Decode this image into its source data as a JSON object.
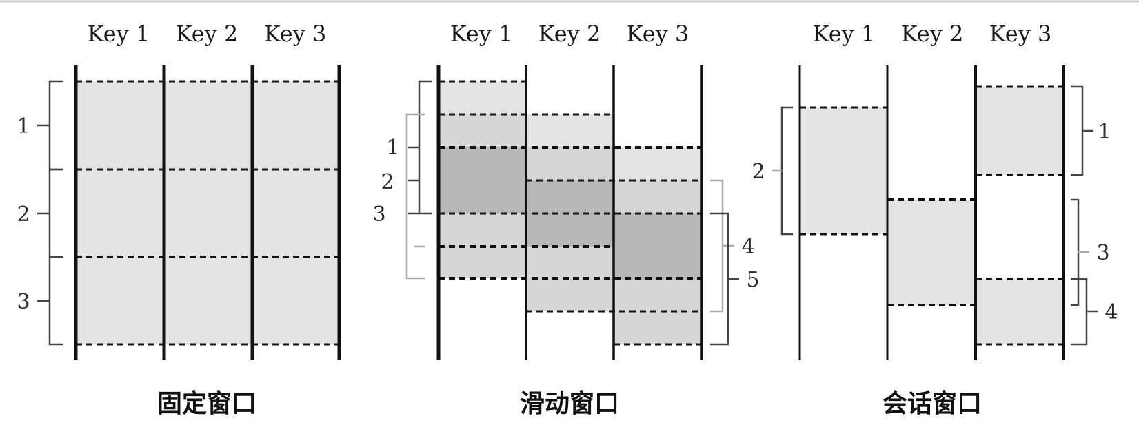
{
  "panels": [
    {
      "caption": "固定窗口",
      "keys": [
        "Key 1",
        "Key 2",
        "Key 3"
      ],
      "window_labels": [
        "1",
        "2",
        "3"
      ]
    },
    {
      "caption": "滑动窗口",
      "keys": [
        "Key 1",
        "Key 2",
        "Key 3"
      ],
      "window_labels": [
        "1",
        "2",
        "3",
        "4",
        "5"
      ]
    },
    {
      "caption": "会话窗口",
      "keys": [
        "Key 1",
        "Key 2",
        "Key 3"
      ],
      "window_labels": [
        "2",
        "1",
        "3",
        "4"
      ]
    }
  ],
  "colors": {
    "light_fill": "#e3e3e3",
    "dark_fill": "#b8b8b8",
    "line": "#111111",
    "bracket_dark": "#444444",
    "bracket_light": "#aaaaaa"
  }
}
